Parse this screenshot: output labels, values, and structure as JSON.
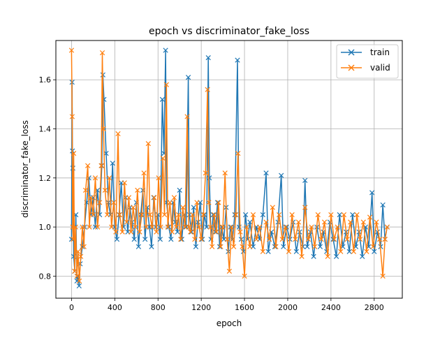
{
  "chart_data": {
    "type": "line",
    "title": "epoch vs discriminator_fake_loss",
    "xlabel": "epoch",
    "ylabel": "discriminator_fake_loss",
    "xlim": [
      -145,
      3060
    ],
    "ylim": [
      0.71,
      1.76
    ],
    "x_ticks": [
      0,
      400,
      800,
      1200,
      1600,
      2000,
      2400,
      2800
    ],
    "y_ticks": [
      0.8,
      1.0,
      1.2,
      1.4,
      1.6
    ],
    "y_tick_labels": [
      "0.8",
      "1.0",
      "1.2",
      "1.4",
      "1.6"
    ],
    "grid": true,
    "marker": "x",
    "legend_position": "top-right",
    "series": [
      {
        "name": "train",
        "color": "#1f77b4",
        "points": [
          [
            0,
            0.95
          ],
          [
            5,
            1.59
          ],
          [
            8,
            1.31
          ],
          [
            12,
            1.24
          ],
          [
            20,
            0.88
          ],
          [
            30,
            0.82
          ],
          [
            40,
            1.05
          ],
          [
            50,
            0.78
          ],
          [
            60,
            0.8
          ],
          [
            70,
            0.76
          ],
          [
            80,
            0.85
          ],
          [
            100,
            0.92
          ],
          [
            120,
            1.0
          ],
          [
            140,
            1.1
          ],
          [
            160,
            1.2
          ],
          [
            180,
            1.05
          ],
          [
            200,
            1.12
          ],
          [
            220,
            1.0
          ],
          [
            240,
            1.15
          ],
          [
            260,
            1.05
          ],
          [
            280,
            1.25
          ],
          [
            290,
            1.62
          ],
          [
            300,
            1.52
          ],
          [
            320,
            1.3
          ],
          [
            340,
            1.1
          ],
          [
            360,
            1.05
          ],
          [
            380,
            1.26
          ],
          [
            400,
            1.0
          ],
          [
            420,
            0.95
          ],
          [
            440,
            1.05
          ],
          [
            460,
            1.18
          ],
          [
            480,
            1.0
          ],
          [
            500,
            1.12
          ],
          [
            520,
            0.98
          ],
          [
            540,
            1.08
          ],
          [
            560,
            1.02
          ],
          [
            580,
            0.95
          ],
          [
            600,
            1.1
          ],
          [
            620,
            0.92
          ],
          [
            640,
            1.05
          ],
          [
            660,
            1.15
          ],
          [
            680,
            0.95
          ],
          [
            700,
            1.08
          ],
          [
            720,
            1.0
          ],
          [
            740,
            0.92
          ],
          [
            760,
            1.12
          ],
          [
            780,
            1.0
          ],
          [
            800,
            1.05
          ],
          [
            820,
            0.95
          ],
          [
            840,
            1.52
          ],
          [
            855,
            1.3
          ],
          [
            870,
            1.72
          ],
          [
            880,
            1.1
          ],
          [
            900,
            1.0
          ],
          [
            920,
            0.95
          ],
          [
            940,
            1.1
          ],
          [
            960,
            1.02
          ],
          [
            980,
            0.98
          ],
          [
            1000,
            1.15
          ],
          [
            1020,
            0.95
          ],
          [
            1040,
            1.05
          ],
          [
            1060,
            1.0
          ],
          [
            1080,
            1.61
          ],
          [
            1090,
            1.05
          ],
          [
            1110,
            0.98
          ],
          [
            1130,
            1.08
          ],
          [
            1150,
            0.92
          ],
          [
            1170,
            1.02
          ],
          [
            1190,
            1.1
          ],
          [
            1210,
            0.95
          ],
          [
            1230,
            1.05
          ],
          [
            1250,
            1.0
          ],
          [
            1265,
            1.69
          ],
          [
            1275,
            1.2
          ],
          [
            1290,
            0.95
          ],
          [
            1310,
            1.05
          ],
          [
            1330,
            0.98
          ],
          [
            1350,
            1.1
          ],
          [
            1370,
            0.92
          ],
          [
            1390,
            1.0
          ],
          [
            1410,
            0.95
          ],
          [
            1430,
            1.08
          ],
          [
            1450,
            0.9
          ],
          [
            1470,
            1.0
          ],
          [
            1490,
            0.95
          ],
          [
            1510,
            1.05
          ],
          [
            1535,
            1.68
          ],
          [
            1550,
            1.0
          ],
          [
            1570,
            0.95
          ],
          [
            1590,
            0.9
          ],
          [
            1610,
            1.05
          ],
          [
            1630,
            0.95
          ],
          [
            1650,
            1.02
          ],
          [
            1680,
            0.92
          ],
          [
            1710,
            1.0
          ],
          [
            1740,
            0.95
          ],
          [
            1770,
            1.05
          ],
          [
            1800,
            1.22
          ],
          [
            1820,
            0.9
          ],
          [
            1850,
            0.98
          ],
          [
            1880,
            0.92
          ],
          [
            1910,
            1.02
          ],
          [
            1940,
            1.21
          ],
          [
            1960,
            0.92
          ],
          [
            1990,
            1.0
          ],
          [
            2020,
            0.95
          ],
          [
            2050,
            1.02
          ],
          [
            2080,
            0.9
          ],
          [
            2110,
            0.98
          ],
          [
            2140,
            0.92
          ],
          [
            2160,
            1.19
          ],
          [
            2180,
            0.92
          ],
          [
            2210,
            0.98
          ],
          [
            2240,
            0.88
          ],
          [
            2270,
            1.0
          ],
          [
            2300,
            0.92
          ],
          [
            2330,
            0.98
          ],
          [
            2360,
            0.9
          ],
          [
            2390,
            1.02
          ],
          [
            2420,
            0.95
          ],
          [
            2450,
            0.88
          ],
          [
            2480,
            1.05
          ],
          [
            2510,
            0.92
          ],
          [
            2540,
            0.98
          ],
          [
            2570,
            0.9
          ],
          [
            2600,
            1.05
          ],
          [
            2630,
            0.92
          ],
          [
            2660,
            0.98
          ],
          [
            2690,
            0.88
          ],
          [
            2720,
            1.0
          ],
          [
            2750,
            0.92
          ],
          [
            2780,
            1.14
          ],
          [
            2800,
            0.9
          ],
          [
            2830,
            0.98
          ],
          [
            2860,
            0.92
          ],
          [
            2880,
            1.09
          ],
          [
            2900,
            0.95
          ],
          [
            2920,
            1.0
          ]
        ]
      },
      {
        "name": "valid",
        "color": "#ff7f0e",
        "points": [
          [
            0,
            1.72
          ],
          [
            6,
            1.45
          ],
          [
            10,
            1.0
          ],
          [
            15,
            0.95
          ],
          [
            20,
            1.3
          ],
          [
            28,
            0.82
          ],
          [
            38,
            1.0
          ],
          [
            50,
            0.8
          ],
          [
            60,
            0.9
          ],
          [
            72,
            0.78
          ],
          [
            85,
            0.88
          ],
          [
            100,
            1.0
          ],
          [
            115,
            0.92
          ],
          [
            130,
            1.15
          ],
          [
            150,
            1.25
          ],
          [
            165,
            1.0
          ],
          [
            180,
            1.12
          ],
          [
            200,
            1.05
          ],
          [
            220,
            1.2
          ],
          [
            240,
            1.0
          ],
          [
            260,
            1.1
          ],
          [
            275,
            1.25
          ],
          [
            285,
            1.71
          ],
          [
            295,
            1.4
          ],
          [
            310,
            1.15
          ],
          [
            330,
            1.05
          ],
          [
            350,
            1.2
          ],
          [
            370,
            1.0
          ],
          [
            390,
            1.1
          ],
          [
            410,
            0.98
          ],
          [
            430,
            1.38
          ],
          [
            445,
            1.05
          ],
          [
            470,
            0.98
          ],
          [
            490,
            1.18
          ],
          [
            510,
            1.02
          ],
          [
            530,
            1.12
          ],
          [
            550,
            0.98
          ],
          [
            570,
            1.08
          ],
          [
            590,
            1.0
          ],
          [
            610,
            1.15
          ],
          [
            630,
            0.98
          ],
          [
            650,
            1.05
          ],
          [
            670,
            1.22
          ],
          [
            690,
            1.0
          ],
          [
            710,
            1.34
          ],
          [
            725,
            1.05
          ],
          [
            745,
            1.0
          ],
          [
            765,
            1.12
          ],
          [
            785,
            0.98
          ],
          [
            805,
            1.2
          ],
          [
            825,
            1.0
          ],
          [
            845,
            1.28
          ],
          [
            860,
            1.05
          ],
          [
            878,
            1.58
          ],
          [
            890,
            1.0
          ],
          [
            910,
            1.1
          ],
          [
            930,
            0.98
          ],
          [
            950,
            1.12
          ],
          [
            970,
            1.0
          ],
          [
            990,
            1.05
          ],
          [
            1010,
            0.95
          ],
          [
            1030,
            1.08
          ],
          [
            1050,
            1.0
          ],
          [
            1070,
            1.45
          ],
          [
            1085,
            1.0
          ],
          [
            1100,
            0.98
          ],
          [
            1120,
            1.05
          ],
          [
            1140,
            0.95
          ],
          [
            1160,
            1.1
          ],
          [
            1180,
            1.0
          ],
          [
            1200,
            0.95
          ],
          [
            1220,
            1.05
          ],
          [
            1240,
            1.22
          ],
          [
            1258,
            1.56
          ],
          [
            1270,
            1.1
          ],
          [
            1285,
            1.0
          ],
          [
            1300,
            0.92
          ],
          [
            1320,
            1.05
          ],
          [
            1340,
            0.98
          ],
          [
            1360,
            1.1
          ],
          [
            1380,
            0.92
          ],
          [
            1400,
            1.0
          ],
          [
            1420,
            1.22
          ],
          [
            1440,
            0.95
          ],
          [
            1460,
            0.82
          ],
          [
            1480,
            1.0
          ],
          [
            1500,
            0.92
          ],
          [
            1520,
            1.05
          ],
          [
            1540,
            1.3
          ],
          [
            1560,
            0.98
          ],
          [
            1580,
            0.92
          ],
          [
            1600,
            0.8
          ],
          [
            1620,
            1.0
          ],
          [
            1650,
            0.92
          ],
          [
            1680,
            1.05
          ],
          [
            1710,
            0.95
          ],
          [
            1740,
            1.0
          ],
          [
            1770,
            0.9
          ],
          [
            1800,
            1.02
          ],
          [
            1830,
            0.95
          ],
          [
            1860,
            1.08
          ],
          [
            1890,
            0.92
          ],
          [
            1920,
            1.05
          ],
          [
            1950,
            0.95
          ],
          [
            1980,
            1.0
          ],
          [
            2010,
            0.9
          ],
          [
            2040,
            1.05
          ],
          [
            2070,
            0.95
          ],
          [
            2100,
            1.02
          ],
          [
            2130,
            0.88
          ],
          [
            2160,
            1.08
          ],
          [
            2190,
            0.95
          ],
          [
            2220,
            1.0
          ],
          [
            2250,
            0.92
          ],
          [
            2280,
            1.05
          ],
          [
            2310,
            0.95
          ],
          [
            2340,
            1.02
          ],
          [
            2370,
            0.88
          ],
          [
            2400,
            1.05
          ],
          [
            2430,
            0.95
          ],
          [
            2460,
            1.0
          ],
          [
            2490,
            0.9
          ],
          [
            2520,
            1.05
          ],
          [
            2550,
            0.95
          ],
          [
            2580,
            1.02
          ],
          [
            2610,
            0.9
          ],
          [
            2640,
            1.05
          ],
          [
            2670,
            0.95
          ],
          [
            2700,
            1.02
          ],
          [
            2730,
            0.9
          ],
          [
            2760,
            1.04
          ],
          [
            2790,
            0.92
          ],
          [
            2820,
            1.02
          ],
          [
            2850,
            0.95
          ],
          [
            2880,
            0.8
          ],
          [
            2900,
            0.95
          ],
          [
            2920,
            1.0
          ]
        ]
      }
    ]
  }
}
